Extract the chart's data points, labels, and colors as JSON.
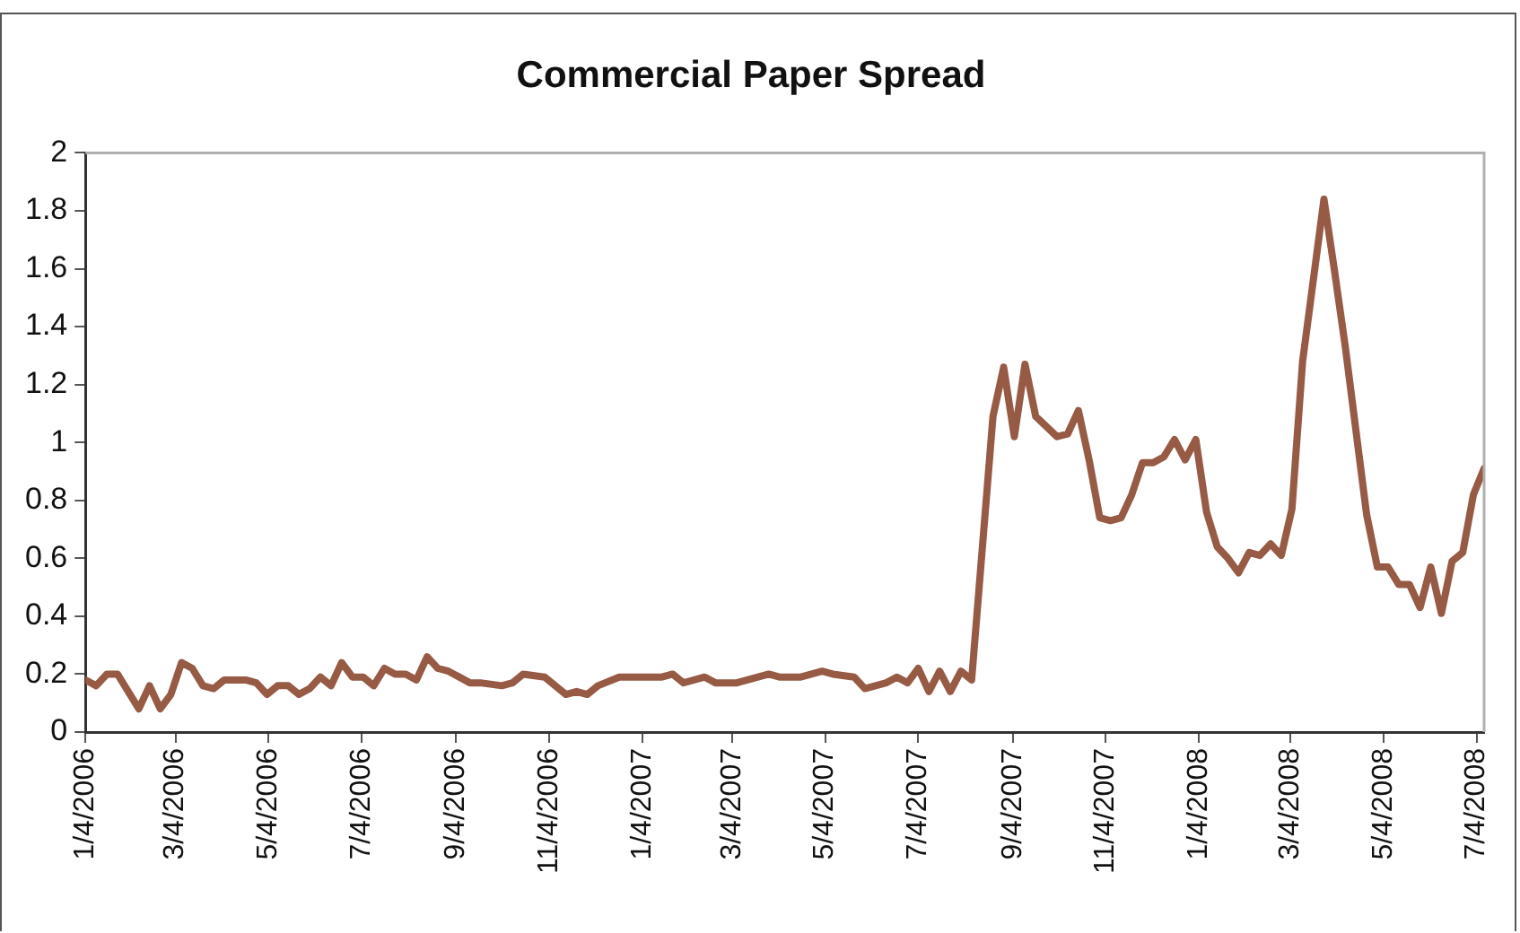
{
  "chart_data": {
    "type": "line",
    "title": "Commercial Paper Spread",
    "x": [
      "2006-01-04",
      "2006-01-11",
      "2006-01-18",
      "2006-01-25",
      "2006-02-08",
      "2006-02-15",
      "2006-02-22",
      "2006-03-01",
      "2006-03-08",
      "2006-03-15",
      "2006-03-22",
      "2006-03-29",
      "2006-04-05",
      "2006-04-19",
      "2006-04-26",
      "2006-05-03",
      "2006-05-10",
      "2006-05-17",
      "2006-05-24",
      "2006-05-31",
      "2006-06-07",
      "2006-06-14",
      "2006-06-21",
      "2006-06-28",
      "2006-07-05",
      "2006-07-12",
      "2006-07-19",
      "2006-07-26",
      "2006-08-02",
      "2006-08-09",
      "2006-08-16",
      "2006-08-23",
      "2006-08-30",
      "2006-09-13",
      "2006-09-20",
      "2006-10-04",
      "2006-10-11",
      "2006-10-18",
      "2006-11-01",
      "2006-11-15",
      "2006-11-22",
      "2006-11-29",
      "2006-12-06",
      "2006-12-20",
      "2007-01-17",
      "2007-01-24",
      "2007-01-31",
      "2007-02-14",
      "2007-02-21",
      "2007-03-07",
      "2007-03-21",
      "2007-03-28",
      "2007-04-04",
      "2007-04-18",
      "2007-04-25",
      "2007-05-02",
      "2007-05-09",
      "2007-05-23",
      "2007-05-30",
      "2007-06-13",
      "2007-06-20",
      "2007-06-27",
      "2007-07-04",
      "2007-07-11",
      "2007-07-18",
      "2007-07-25",
      "2007-08-01",
      "2007-08-08",
      "2007-08-22",
      "2007-08-29",
      "2007-09-05",
      "2007-09-12",
      "2007-09-19",
      "2007-10-03",
      "2007-10-10",
      "2007-10-17",
      "2007-10-24",
      "2007-10-31",
      "2007-11-07",
      "2007-11-14",
      "2007-11-21",
      "2007-11-28",
      "2007-12-05",
      "2007-12-12",
      "2007-12-19",
      "2007-12-26",
      "2008-01-02",
      "2008-01-09",
      "2008-01-16",
      "2008-01-23",
      "2008-01-30",
      "2008-02-06",
      "2008-02-13",
      "2008-02-20",
      "2008-02-27",
      "2008-03-05",
      "2008-03-12",
      "2008-03-26",
      "2008-04-02",
      "2008-04-09",
      "2008-04-23",
      "2008-04-30",
      "2008-05-07",
      "2008-05-14",
      "2008-05-21",
      "2008-05-28",
      "2008-06-04",
      "2008-06-11",
      "2008-06-18",
      "2008-06-25",
      "2008-07-02",
      "2008-07-09"
    ],
    "series": [
      {
        "color": "#965a45",
        "values": [
          0.18,
          0.16,
          0.2,
          0.2,
          0.08,
          0.16,
          0.08,
          0.13,
          0.24,
          0.22,
          0.16,
          0.15,
          0.18,
          0.18,
          0.17,
          0.13,
          0.16,
          0.16,
          0.13,
          0.15,
          0.19,
          0.16,
          0.24,
          0.19,
          0.19,
          0.16,
          0.22,
          0.2,
          0.2,
          0.18,
          0.26,
          0.22,
          0.21,
          0.17,
          0.17,
          0.16,
          0.17,
          0.2,
          0.19,
          0.13,
          0.14,
          0.13,
          0.16,
          0.19,
          0.19,
          0.2,
          0.17,
          0.19,
          0.17,
          0.17,
          0.19,
          0.2,
          0.19,
          0.19,
          0.2,
          0.21,
          0.2,
          0.19,
          0.15,
          0.17,
          0.19,
          0.17,
          0.22,
          0.14,
          0.21,
          0.14,
          0.21,
          0.18,
          1.09,
          1.26,
          1.02,
          1.27,
          1.09,
          1.02,
          1.03,
          1.11,
          0.94,
          0.74,
          0.73,
          0.74,
          0.82,
          0.93,
          0.93,
          0.95,
          1.01,
          0.94,
          1.01,
          0.76,
          0.64,
          0.6,
          0.55,
          0.62,
          0.61,
          0.65,
          0.61,
          0.77,
          1.28,
          1.84,
          1.59,
          1.33,
          0.75,
          0.57,
          0.57,
          0.51,
          0.51,
          0.43,
          0.57,
          0.41,
          0.59,
          0.62,
          0.82,
          0.91
        ]
      }
    ],
    "xlim": [
      "2006-01-04",
      "2008-07-09"
    ],
    "xticks": [
      {
        "value": "2006-01-04",
        "label": "1/4/2006"
      },
      {
        "value": "2006-03-04",
        "label": "3/4/2006"
      },
      {
        "value": "2006-05-04",
        "label": "5/4/2006"
      },
      {
        "value": "2006-07-04",
        "label": "7/4/2006"
      },
      {
        "value": "2006-09-04",
        "label": "9/4/2006"
      },
      {
        "value": "2006-11-04",
        "label": "11/4/2006"
      },
      {
        "value": "2007-01-04",
        "label": "1/4/2007"
      },
      {
        "value": "2007-03-04",
        "label": "3/4/2007"
      },
      {
        "value": "2007-05-04",
        "label": "5/4/2007"
      },
      {
        "value": "2007-07-04",
        "label": "7/4/2007"
      },
      {
        "value": "2007-09-04",
        "label": "9/4/2007"
      },
      {
        "value": "2007-11-04",
        "label": "11/4/2007"
      },
      {
        "value": "2008-01-04",
        "label": "1/4/2008"
      },
      {
        "value": "2008-03-04",
        "label": "3/4/2008"
      },
      {
        "value": "2008-05-04",
        "label": "5/4/2008"
      },
      {
        "value": "2008-07-04",
        "label": "7/4/2008"
      }
    ],
    "ylim": [
      0,
      2
    ],
    "yticks": [
      0,
      0.2,
      0.4,
      0.6,
      0.8,
      1,
      1.2,
      1.4,
      1.6,
      1.8,
      2
    ],
    "grid": false,
    "legend": false,
    "marker": "none",
    "line_style": "solid"
  }
}
